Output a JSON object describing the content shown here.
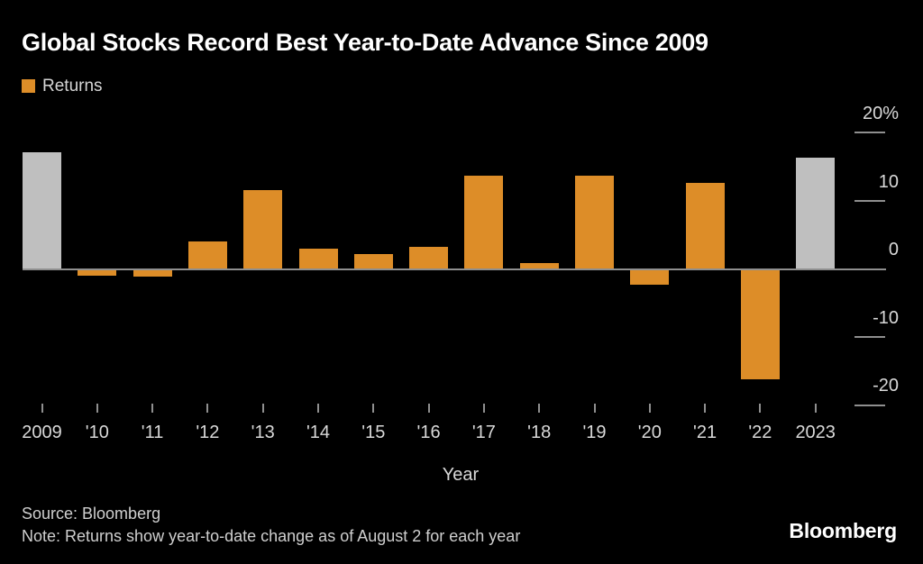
{
  "header": {
    "title": "Global Stocks Record Best Year-to-Date Advance Since 2009",
    "legend_label": "Returns"
  },
  "chart_data": {
    "type": "bar",
    "title": "Global Stocks Record Best Year-to-Date Advance Since 2009",
    "series_name": "Returns",
    "categories": [
      "2009",
      "'10",
      "'11",
      "'12",
      "'13",
      "'14",
      "'15",
      "'16",
      "'17",
      "'18",
      "'19",
      "'20",
      "'21",
      "'22",
      "2023"
    ],
    "values": [
      17.2,
      -1.0,
      -1.1,
      4.1,
      11.6,
      3.0,
      2.2,
      3.3,
      13.7,
      0.9,
      13.7,
      -2.3,
      12.6,
      -16.2,
      16.3
    ],
    "unit": "%",
    "xlabel": "Year",
    "ylabel": "",
    "ylim": [
      -22,
      22
    ],
    "grid": false,
    "legend_position": "top-left",
    "y_ticks": [
      {
        "label": "20%",
        "value": 20
      },
      {
        "label": "10",
        "value": 10
      },
      {
        "label": "0",
        "value": 0
      },
      {
        "label": "-10",
        "value": -10
      },
      {
        "label": "-20",
        "value": -20
      }
    ],
    "highlight_indices": [
      0,
      14
    ],
    "colors": {
      "background": "#000000",
      "bar": "#dd8d28",
      "highlight_bar": "#bfbfbf",
      "axis": "#8f8f8f",
      "tick_text": "#d9d9d9",
      "title_text": "#ffffff"
    }
  },
  "footer": {
    "source": "Source: Bloomberg",
    "note": "Note: Returns show year-to-date change as of August 2 for each year",
    "brand": "Bloomberg"
  }
}
